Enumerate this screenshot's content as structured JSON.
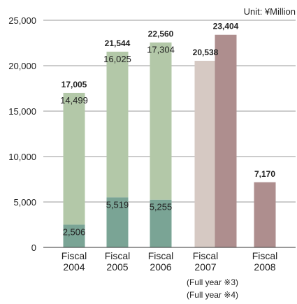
{
  "chart_data": {
    "type": "bar",
    "stacked": true,
    "unit_label": "Unit: ¥Million",
    "y_ticks": [
      "0",
      "5,000",
      "10,000",
      "15,000",
      "20,000",
      "25,000"
    ],
    "y_tick_values": [
      0,
      5000,
      10000,
      15000,
      20000,
      25000
    ],
    "ylim": [
      0,
      25000
    ],
    "grid": true,
    "bars": [
      {
        "category_line1": "Fiscal",
        "category_line2": "2004",
        "x_center": 0,
        "total": 17005,
        "total_label": "17,005",
        "segments": [
          {
            "value": 2506,
            "label": "2,506",
            "color": "#7aa495"
          },
          {
            "value": 14499,
            "label": "14,499",
            "color": "#b3c8a8"
          }
        ]
      },
      {
        "category_line1": "Fiscal",
        "category_line2": "2005",
        "x_center": 0,
        "total": 21544,
        "total_label": "21,544",
        "segments": [
          {
            "value": 5519,
            "label": "5,519",
            "color": "#7aa495"
          },
          {
            "value": 16025,
            "label": "16,025",
            "color": "#b3c8a8"
          }
        ]
      },
      {
        "category_line1": "Fiscal",
        "category_line2": "2006",
        "x_center": 0,
        "total": 22560,
        "total_label": "22,560",
        "segments": [
          {
            "value": 5255,
            "label": "5,255",
            "color": "#7aa495"
          },
          {
            "value": 17304,
            "label": "17,304",
            "color": "#b3c8a8"
          }
        ]
      },
      {
        "category_line1": "Fiscal",
        "category_line2": "2007",
        "x_center": 0,
        "total": 20538,
        "total_label": "20,538",
        "segments": [
          {
            "value": 20538,
            "label": "",
            "color": "#d6c9c3"
          }
        ]
      },
      {
        "category_line1": "",
        "category_line2": "",
        "x_center": 0,
        "total": 23404,
        "total_label": "23,404",
        "segments": [
          {
            "value": 23404,
            "label": "",
            "color": "#ae8e8e"
          }
        ]
      },
      {
        "category_line1": "Fiscal",
        "category_line2": "2008",
        "x_center": 0,
        "total": 7170,
        "total_label": "7,170",
        "segments": [
          {
            "value": 7170,
            "label": "",
            "color": "#ae8e8e"
          }
        ]
      }
    ],
    "notes": [
      "(Full year ※3)",
      "(Full year ※4)"
    ],
    "colors": {
      "axis": "#333333",
      "grid": "#999999",
      "dark_green": "#7aa495",
      "light_green": "#b3c8a8",
      "light_mauve": "#d6c9c3",
      "mauve": "#ae8e8e"
    }
  }
}
